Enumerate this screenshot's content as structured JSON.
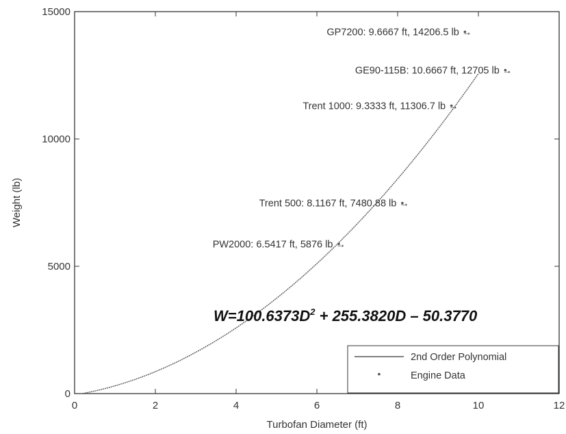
{
  "chart_data": {
    "type": "line",
    "xlabel": "Turbofan Diameter (ft)",
    "ylabel": "Weight (lb)",
    "xlim": [
      0,
      12
    ],
    "ylim": [
      0,
      15000
    ],
    "xticks": [
      0,
      2,
      4,
      6,
      8,
      10,
      12
    ],
    "yticks": [
      0,
      5000,
      10000,
      15000
    ],
    "xtick_labels": [
      "0",
      "2",
      "4",
      "6",
      "8",
      "10",
      "12"
    ],
    "ytick_labels": [
      "0",
      "5000",
      "10000",
      "15000"
    ],
    "grid": false,
    "legend_position": "bottom-right",
    "equation": {
      "prefix": "W=100.6373D",
      "sup": "2",
      "suffix": " + 255.3820D – 50.3770",
      "coefficients": {
        "a": 100.6373,
        "b": 255.382,
        "c": -50.377
      }
    },
    "series": [
      {
        "name": "2nd Order Polynomial",
        "kind": "line",
        "x_range": [
          0.2,
          10
        ],
        "color": "#555555"
      },
      {
        "name": "Engine Data",
        "kind": "marker",
        "color": "#555555",
        "points": [
          {
            "x": 6.5417,
            "y": 5876
          },
          {
            "x": 8.1167,
            "y": 7480.88
          },
          {
            "x": 9.3333,
            "y": 11306.7
          },
          {
            "x": 10.6667,
            "y": 12705
          },
          {
            "x": 9.6667,
            "y": 14206.5
          }
        ]
      }
    ],
    "annotations": [
      {
        "text": "GP7200: 9.6667 ft, 14206.5 lb →",
        "x": 9.6667,
        "y": 14206.5
      },
      {
        "text": "GE90-115B: 10.6667 ft, 12705 lb →",
        "x": 10.6667,
        "y": 12705
      },
      {
        "text": "Trent 1000: 9.3333 ft, 11306.7 lb →",
        "x": 9.3333,
        "y": 11306.7
      },
      {
        "text": "Trent 500: 8.1167 ft, 7480.88 lb →",
        "x": 8.1167,
        "y": 7480.88
      },
      {
        "text": "PW2000: 6.5417 ft, 5876 lb →",
        "x": 6.5417,
        "y": 5876
      }
    ]
  }
}
